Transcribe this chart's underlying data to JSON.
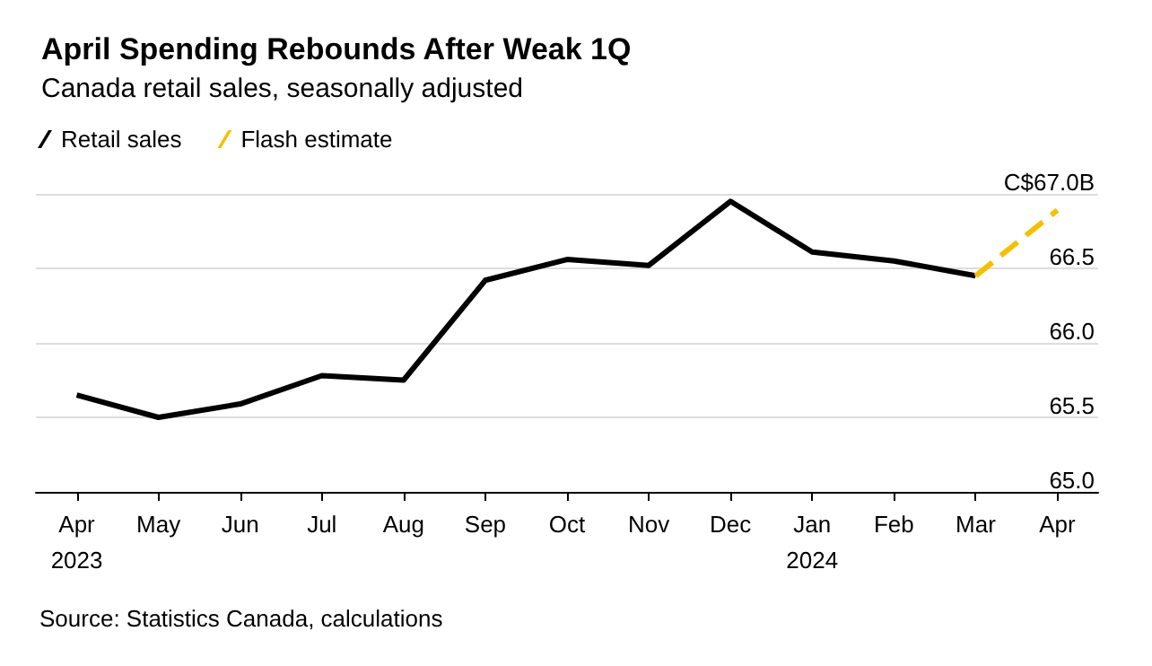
{
  "chart_data": {
    "type": "line",
    "title": "April Spending Rebounds After Weak 1Q",
    "subtitle": "Canada retail sales, seasonally adjusted",
    "categories": [
      "Apr\n2023",
      "May",
      "Jun",
      "Jul",
      "Aug",
      "Sep",
      "Oct",
      "Nov",
      "Dec",
      "Jan\n2024",
      "Feb",
      "Mar",
      "Apr"
    ],
    "series": [
      {
        "name": "Retail sales",
        "color": "#000000",
        "line_style": "solid",
        "values": [
          65.65,
          65.5,
          65.59,
          65.78,
          65.75,
          66.42,
          66.56,
          66.52,
          66.95,
          66.61,
          66.55,
          66.45,
          null
        ]
      },
      {
        "name": "Flash estimate",
        "color": "#f5c000",
        "line_style": "dashed",
        "values": [
          null,
          null,
          null,
          null,
          null,
          null,
          null,
          null,
          null,
          null,
          null,
          66.45,
          66.89
        ]
      }
    ],
    "ylim": [
      65,
      67
    ],
    "yticks": [
      {
        "value": 65,
        "label": "65.0"
      },
      {
        "value": 65.5,
        "label": "65.5"
      },
      {
        "value": 66,
        "label": "66.0"
      },
      66.5,
      {
        "value": 67,
        "label": "C$67.0B"
      }
    ],
    "grid": "y",
    "legend": "top left",
    "marker": "none",
    "annotations": [
      "Source: Statistics Canada, calculations"
    ]
  }
}
